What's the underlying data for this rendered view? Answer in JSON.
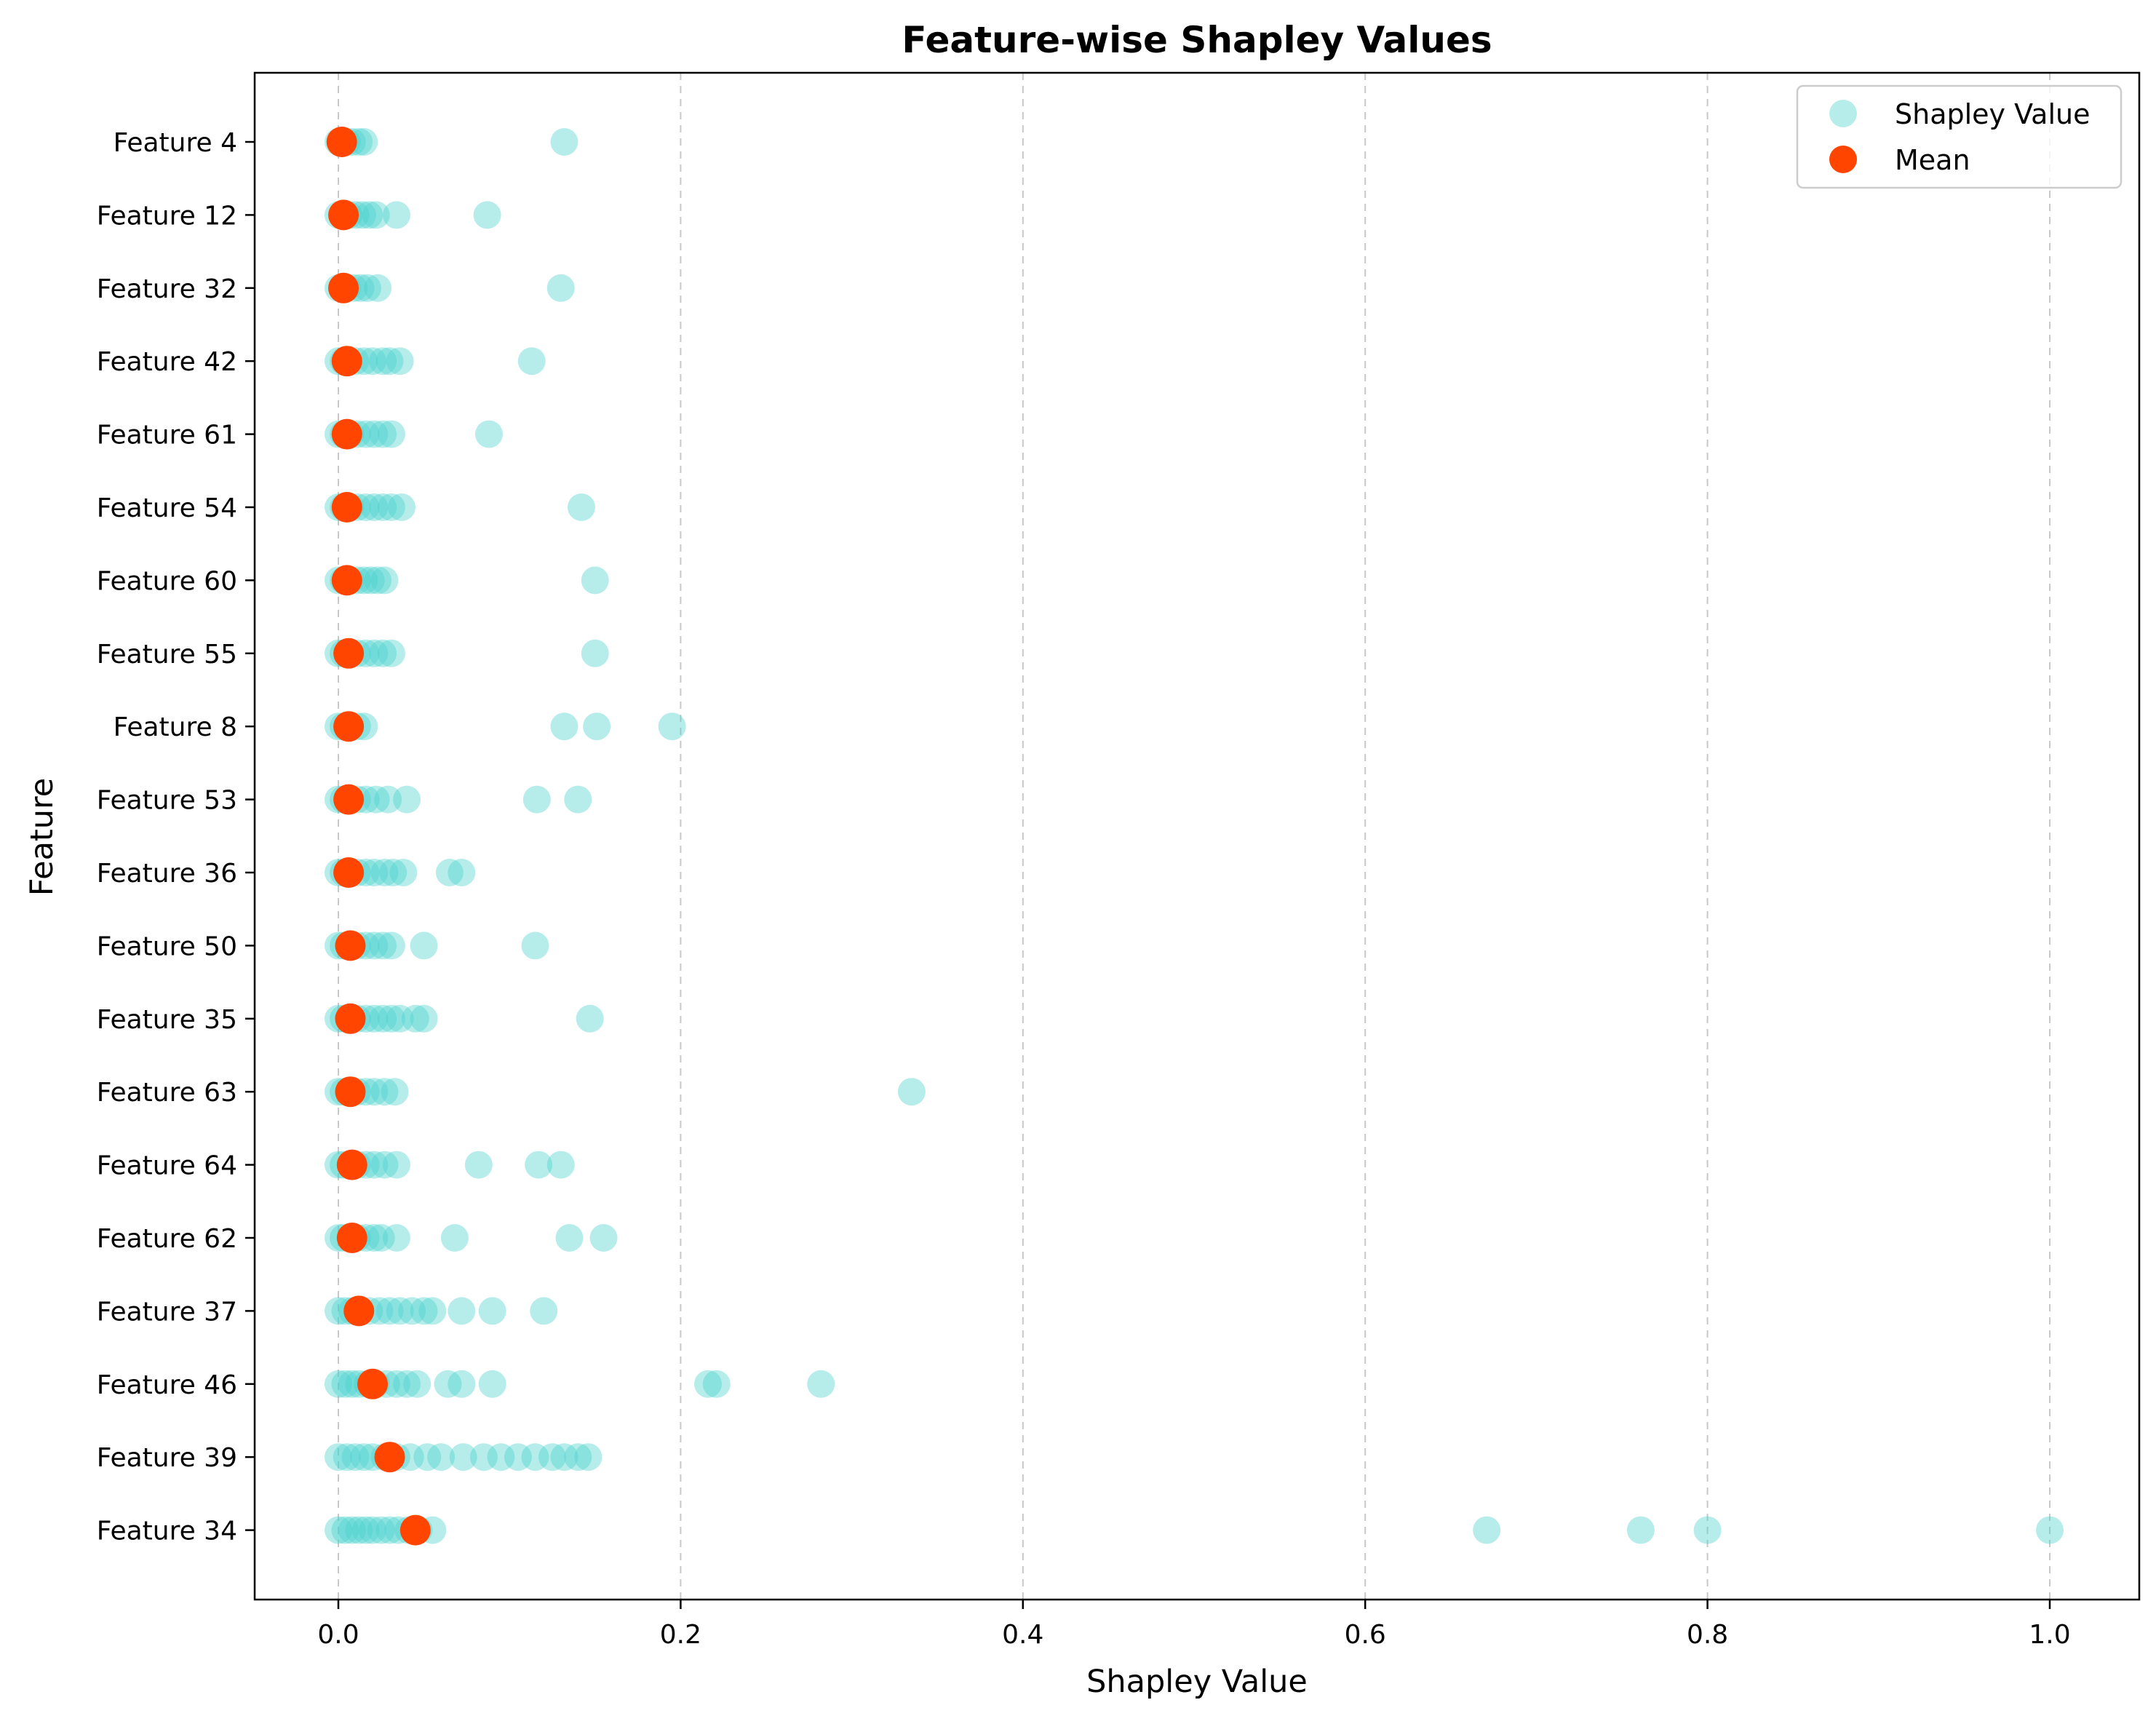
{
  "chart_data": {
    "type": "scatter",
    "orientation": "horizontal",
    "title": "Feature-wise Shapley Values",
    "xlabel": "Shapley Value",
    "ylabel": "Feature",
    "xlim": [
      -0.05,
      1.05
    ],
    "xticks": [
      0.0,
      0.2,
      0.4,
      0.6,
      0.8,
      1.0
    ],
    "xtick_labels": [
      "0.0",
      "0.2",
      "0.4",
      "0.6",
      "0.8",
      "1.0"
    ],
    "grid": "x-axis dashed",
    "legend_position": "top-right",
    "categories": [
      "Feature 4",
      "Feature 12",
      "Feature 32",
      "Feature 42",
      "Feature 61",
      "Feature 54",
      "Feature 60",
      "Feature 55",
      "Feature 8",
      "Feature 53",
      "Feature 36",
      "Feature 50",
      "Feature 35",
      "Feature 63",
      "Feature 64",
      "Feature 62",
      "Feature 37",
      "Feature 46",
      "Feature 39",
      "Feature 34"
    ],
    "series": [
      {
        "name": "Shapley Value",
        "color": "#48d1cc",
        "opacity": 0.4,
        "values": [
          [
            0.0,
            0.002,
            0.005,
            0.008,
            0.012,
            0.015,
            0.132
          ],
          [
            0.0,
            0.003,
            0.006,
            0.01,
            0.014,
            0.018,
            0.022,
            0.034,
            0.087
          ],
          [
            0.0,
            0.002,
            0.005,
            0.009,
            0.013,
            0.017,
            0.023,
            0.13
          ],
          [
            0.0,
            0.003,
            0.006,
            0.01,
            0.015,
            0.02,
            0.026,
            0.03,
            0.036,
            0.113
          ],
          [
            0.0,
            0.003,
            0.007,
            0.011,
            0.016,
            0.021,
            0.026,
            0.031,
            0.088
          ],
          [
            0.0,
            0.003,
            0.007,
            0.011,
            0.016,
            0.021,
            0.026,
            0.031,
            0.037,
            0.142
          ],
          [
            0.0,
            0.003,
            0.007,
            0.011,
            0.015,
            0.019,
            0.023,
            0.027,
            0.15
          ],
          [
            0.0,
            0.003,
            0.007,
            0.011,
            0.016,
            0.021,
            0.026,
            0.031,
            0.15
          ],
          [
            0.0,
            0.003,
            0.007,
            0.011,
            0.015,
            0.132,
            0.151,
            0.195
          ],
          [
            0.0,
            0.003,
            0.007,
            0.011,
            0.016,
            0.022,
            0.029,
            0.04,
            0.116,
            0.14
          ],
          [
            0.0,
            0.003,
            0.007,
            0.011,
            0.016,
            0.021,
            0.027,
            0.032,
            0.038,
            0.065,
            0.072
          ],
          [
            0.0,
            0.003,
            0.007,
            0.011,
            0.016,
            0.021,
            0.026,
            0.031,
            0.05,
            0.115
          ],
          [
            0.0,
            0.003,
            0.007,
            0.011,
            0.016,
            0.021,
            0.026,
            0.031,
            0.036,
            0.045,
            0.05,
            0.147
          ],
          [
            0.0,
            0.003,
            0.007,
            0.011,
            0.016,
            0.021,
            0.027,
            0.033,
            0.335
          ],
          [
            0.0,
            0.003,
            0.007,
            0.011,
            0.016,
            0.021,
            0.027,
            0.034,
            0.082,
            0.117,
            0.13
          ],
          [
            0.0,
            0.003,
            0.007,
            0.011,
            0.016,
            0.021,
            0.025,
            0.034,
            0.068,
            0.135,
            0.155
          ],
          [
            0.0,
            0.004,
            0.008,
            0.013,
            0.018,
            0.024,
            0.03,
            0.036,
            0.043,
            0.05,
            0.055,
            0.072,
            0.09,
            0.12
          ],
          [
            0.0,
            0.004,
            0.008,
            0.012,
            0.017,
            0.022,
            0.028,
            0.034,
            0.04,
            0.046,
            0.064,
            0.072,
            0.09,
            0.216,
            0.221,
            0.282
          ],
          [
            0.0,
            0.005,
            0.01,
            0.015,
            0.02,
            0.027,
            0.034,
            0.042,
            0.052,
            0.06,
            0.073,
            0.085,
            0.095,
            0.105,
            0.115,
            0.125,
            0.132,
            0.14,
            0.146
          ],
          [
            0.0,
            0.004,
            0.008,
            0.012,
            0.016,
            0.02,
            0.025,
            0.03,
            0.035,
            0.041,
            0.047,
            0.055,
            0.671,
            0.761,
            0.8,
            1.0
          ]
        ]
      },
      {
        "name": "Mean",
        "color": "#ff4500",
        "opacity": 1.0,
        "values": [
          0.002,
          0.003,
          0.003,
          0.005,
          0.005,
          0.005,
          0.005,
          0.006,
          0.006,
          0.006,
          0.006,
          0.007,
          0.007,
          0.007,
          0.008,
          0.008,
          0.012,
          0.02,
          0.03,
          0.045
        ]
      }
    ]
  }
}
